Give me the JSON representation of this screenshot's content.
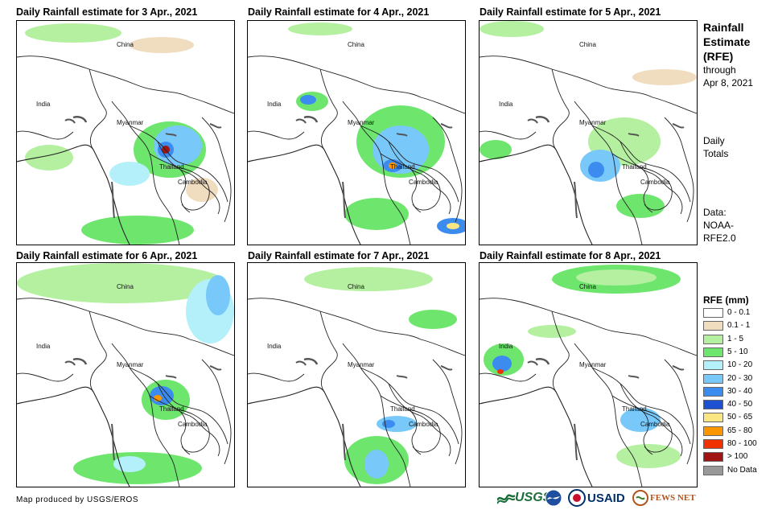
{
  "panels": [
    {
      "title": "Daily Rainfall estimate for 3 Apr., 2021"
    },
    {
      "title": "Daily Rainfall estimate for 4 Apr., 2021"
    },
    {
      "title": "Daily Rainfall estimate for 5 Apr., 2021"
    },
    {
      "title": "Daily Rainfall estimate for 6 Apr., 2021"
    },
    {
      "title": "Daily Rainfall estimate for 7 Apr., 2021"
    },
    {
      "title": "Daily Rainfall estimate for 8 Apr., 2021"
    }
  ],
  "places": {
    "china": "China",
    "india": "India",
    "myanmar": "Myanmar",
    "thailand": "Thailand",
    "cambodia": "Cambodia"
  },
  "sidebar": {
    "title_line1": "Rainfall",
    "title_line2": "Estimate",
    "title_line3": "(RFE)",
    "through": "through",
    "date": "Apr 8, 2021",
    "daily": "Daily",
    "totals": "Totals",
    "data_label": "Data:",
    "data_src1": "NOAA-",
    "data_src2": "RFE2.0"
  },
  "legend": {
    "title": "RFE (mm)",
    "items": [
      {
        "label": "0 - 0.1",
        "color": "#ffffff"
      },
      {
        "label": "0.1 - 1",
        "color": "#f0dcbe"
      },
      {
        "label": "1 - 5",
        "color": "#b4f0a0"
      },
      {
        "label": "5 - 10",
        "color": "#6ee66e"
      },
      {
        "label": "10 - 20",
        "color": "#b4f0fa"
      },
      {
        "label": "20 - 30",
        "color": "#78c8fa"
      },
      {
        "label": "30 - 40",
        "color": "#3c8cf0"
      },
      {
        "label": "40 - 50",
        "color": "#1e50d2"
      },
      {
        "label": "50 - 65",
        "color": "#fae682"
      },
      {
        "label": "65 - 80",
        "color": "#fa9600"
      },
      {
        "label": "80 - 100",
        "color": "#f03200"
      },
      {
        "label": "> 100",
        "color": "#a01414"
      },
      {
        "label": "No Data",
        "color": "#999999"
      }
    ]
  },
  "footer": {
    "credit": "Map produced by USGS/EROS",
    "logos": {
      "usgs": "USGS",
      "usaid": "USAID",
      "fewsnet": "FEWS NET"
    }
  }
}
